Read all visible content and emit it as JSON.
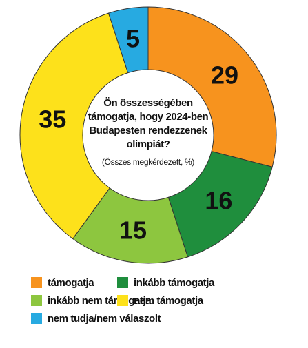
{
  "chart_data": {
    "type": "donut",
    "title": [
      "Ön összességében",
      "támogatja, hogy 2024-ben",
      "Budapesten rendezzenek",
      "olimpiát?"
    ],
    "subtitle": "(Összes megkérdezett, %)",
    "categories": [
      "támogatja",
      "inkább támogatja",
      "inkább nem támogatja",
      "nem támogatja",
      "nem tudja/nem válaszolt"
    ],
    "values": [
      29,
      16,
      15,
      35,
      5
    ],
    "colors": [
      "#f7931e",
      "#1f8e3d",
      "#8dc63f",
      "#fde11b",
      "#27aae1"
    ]
  }
}
